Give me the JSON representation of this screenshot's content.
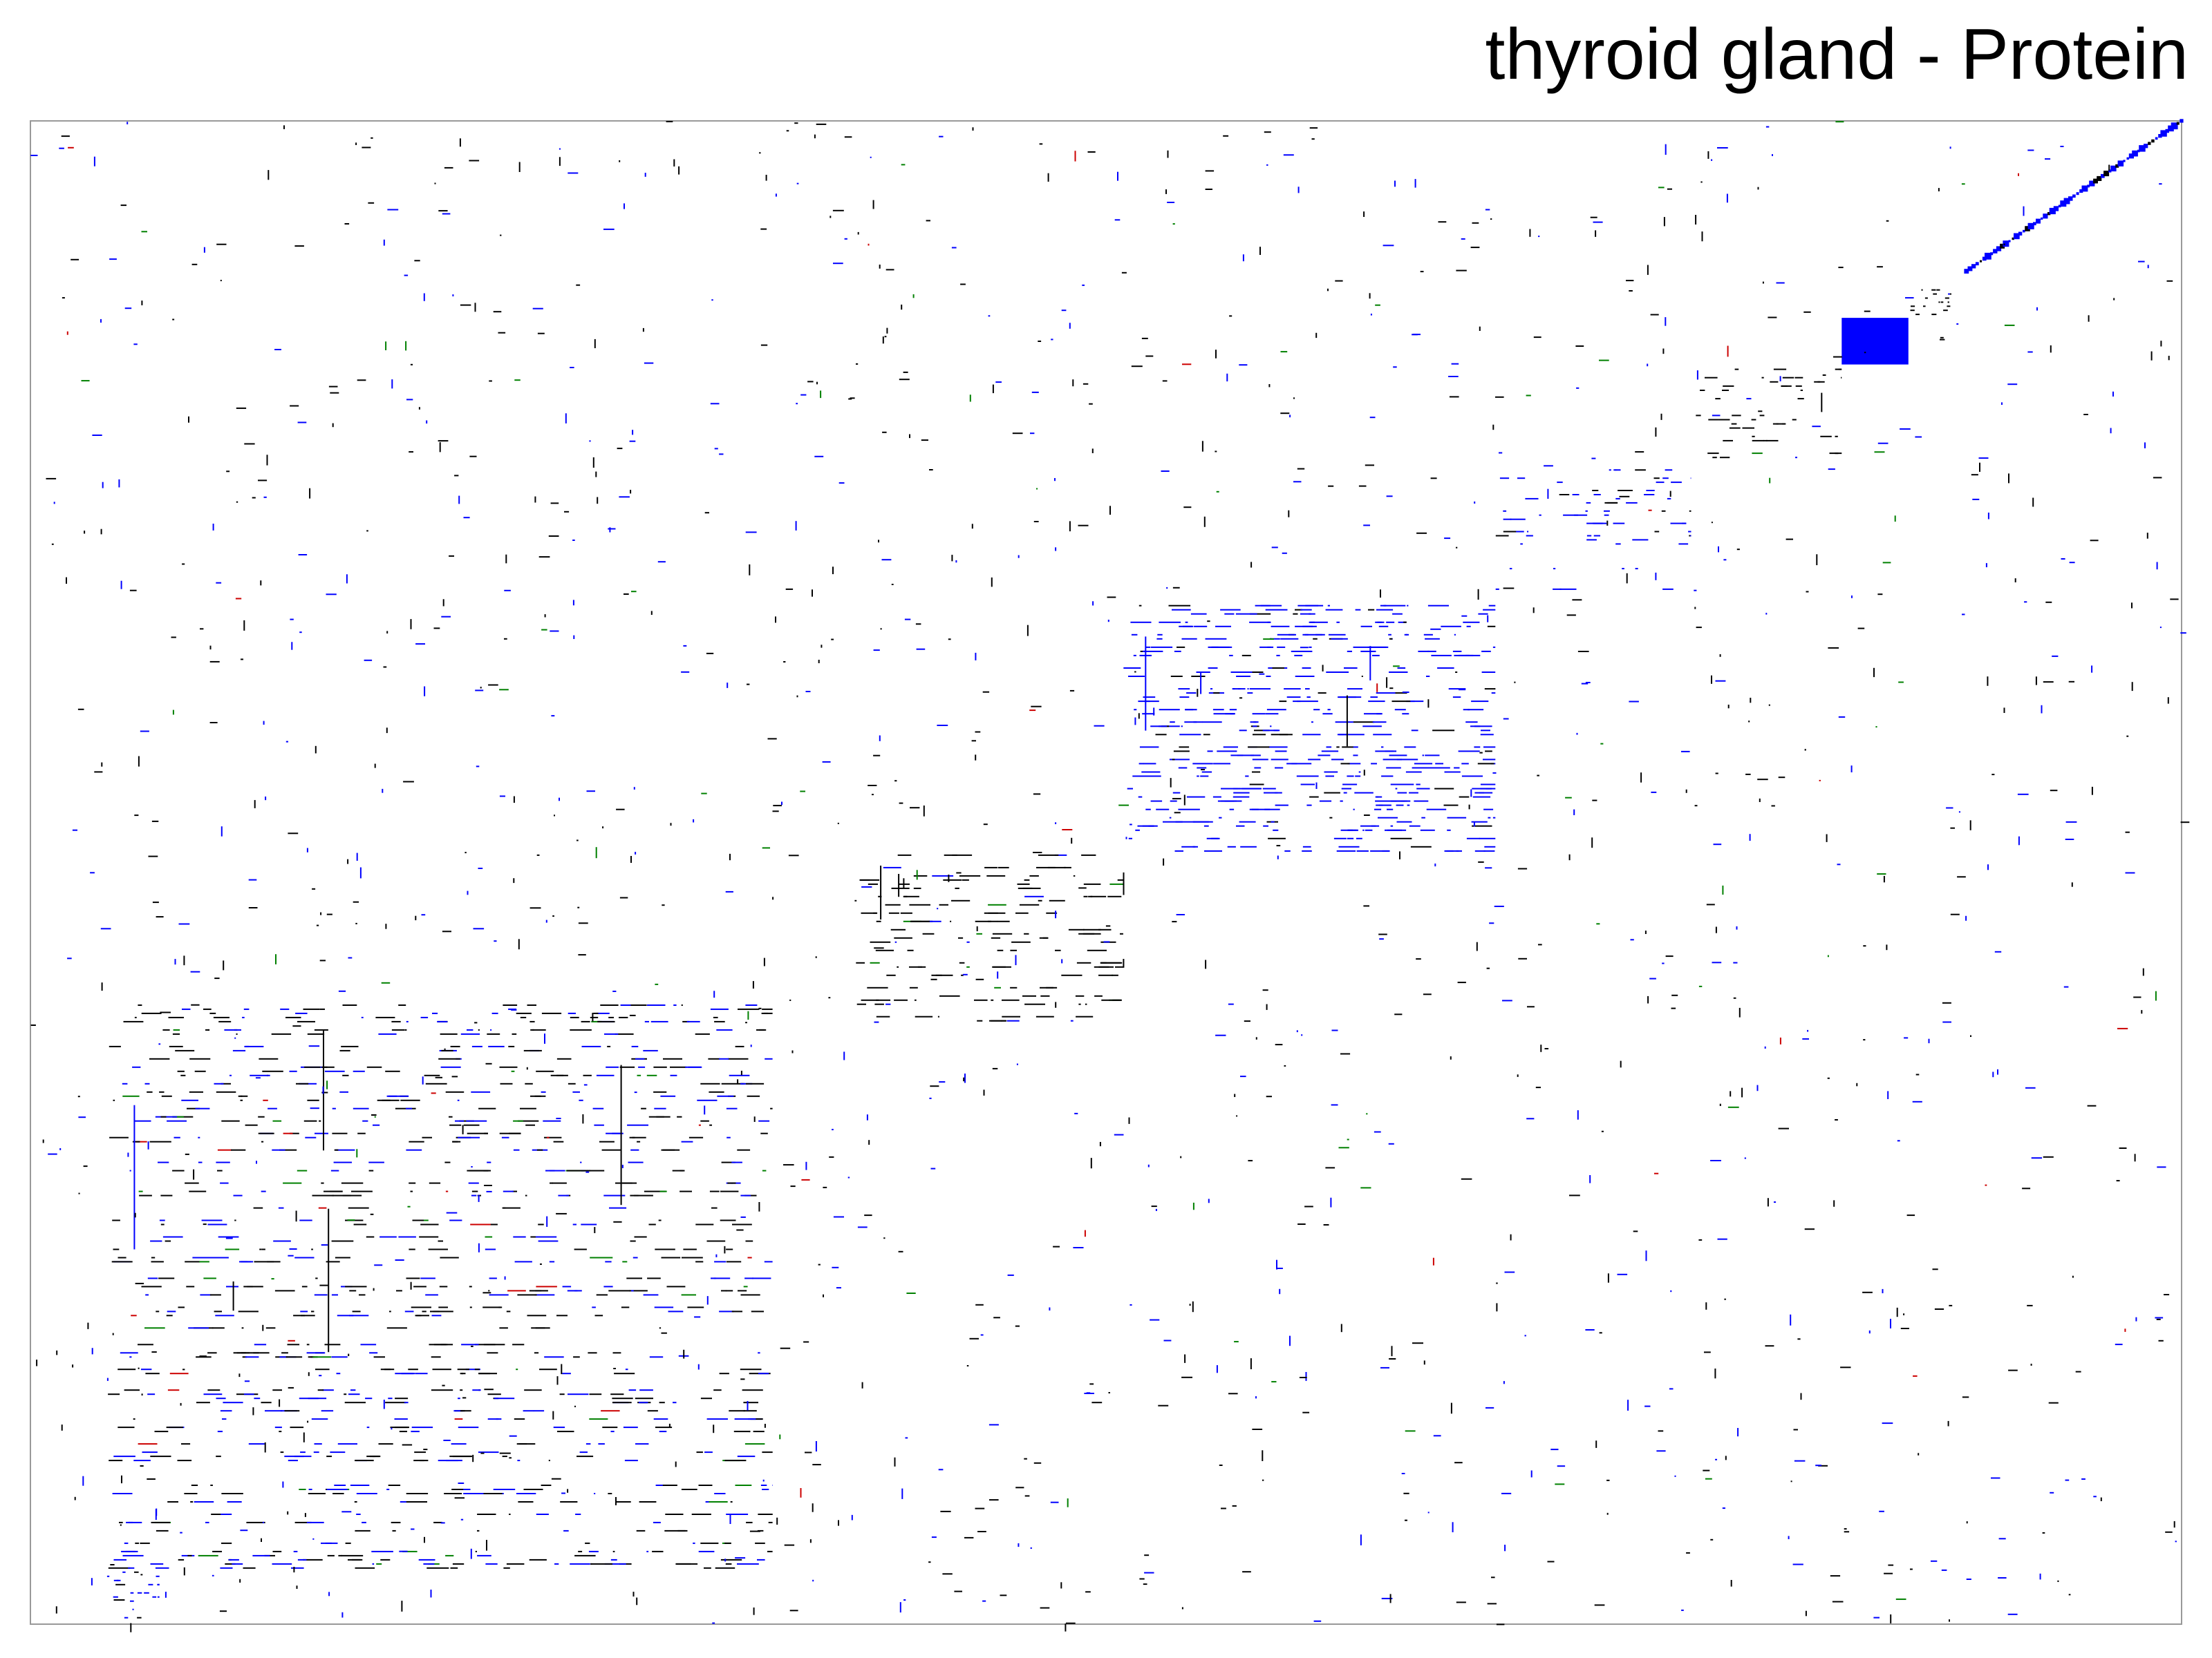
{
  "title": "thyroid gland - Protein",
  "chart_data": {
    "type": "heatmap",
    "title": "thyroid gland - Protein",
    "xlabel": "",
    "ylabel": "",
    "grid": false,
    "legend": "none",
    "colors": {
      "background": "#ffffff",
      "frame": "#999999",
      "default_mark": "#000000",
      "mark_blue": "#0000ff",
      "mark_green": "#008000",
      "mark_red": "#cc0000"
    },
    "blocks": [
      {
        "x": [
          0.035,
          0.345
        ],
        "y": [
          0.585,
          0.965
        ],
        "density": 0.55,
        "color": "mixed"
      },
      {
        "x": [
          0.383,
          0.508
        ],
        "y": [
          0.488,
          0.612
        ],
        "density": 0.65,
        "color": "black"
      },
      {
        "x": [
          0.508,
          0.681
        ],
        "y": [
          0.322,
          0.488
        ],
        "density": 0.8,
        "color": "blue"
      },
      {
        "x": [
          0.681,
          0.772
        ],
        "y": [
          0.229,
          0.322
        ],
        "density": 0.55,
        "color": "blue"
      },
      {
        "x": [
          0.772,
          0.842
        ],
        "y": [
          0.162,
          0.229
        ],
        "density": 0.75,
        "color": "black"
      },
      {
        "x": [
          0.842,
          0.873
        ],
        "y": [
          0.131,
          0.162
        ],
        "density": 1.0,
        "color": "blue"
      },
      {
        "x": [
          0.873,
          0.893
        ],
        "y": [
          0.112,
          0.131
        ],
        "density": 0.95,
        "color": "black"
      },
      {
        "x": [
          0.035,
          0.06
        ],
        "y": [
          0.965,
          0.998
        ],
        "density": 0.7,
        "color": "blue"
      }
    ],
    "diagonal": {
      "from": [
        0.9,
        0.1
      ],
      "to": [
        1.0,
        0.0
      ],
      "color": "blue"
    }
  }
}
